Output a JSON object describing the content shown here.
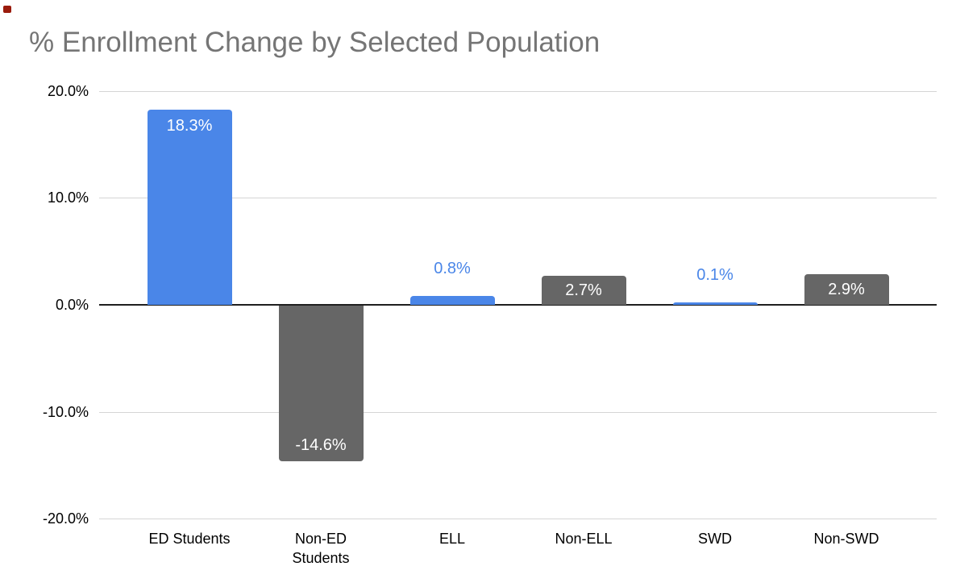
{
  "colors": {
    "bar_blue": "#4a86e8",
    "bar_gray": "#666666",
    "title_text": "#757575",
    "gridline": "#d5d5d5",
    "zero_axis": "#1f1f1f",
    "label_on_bar": "#ffffff",
    "corner_artifact": "#9a1b0c"
  },
  "chart_data": {
    "type": "bar",
    "title": "% Enrollment Change by Selected Population",
    "categories": [
      "ED Students",
      "Non-ED Students",
      "ELL",
      "Non-ELL",
      "SWD",
      "Non-SWD"
    ],
    "values": [
      18.3,
      -14.6,
      0.8,
      2.7,
      0.1,
      2.9
    ],
    "labels": [
      "18.3%",
      "-14.6%",
      "0.8%",
      "2.7%",
      "0.1%",
      "2.9%"
    ],
    "series_colors": [
      "#4a86e8",
      "#666666",
      "#4a86e8",
      "#666666",
      "#4a86e8",
      "#666666"
    ],
    "label_placement": [
      "inside-top",
      "inside-bottom",
      "above",
      "inside",
      "above",
      "inside"
    ],
    "y_ticks": [
      "20.0%",
      "10.0%",
      "0.0%",
      "-10.0%",
      "-20.0%"
    ],
    "ylim": [
      -20,
      20
    ],
    "xlabel": "",
    "ylabel": "",
    "grid": true,
    "legend": "none"
  }
}
